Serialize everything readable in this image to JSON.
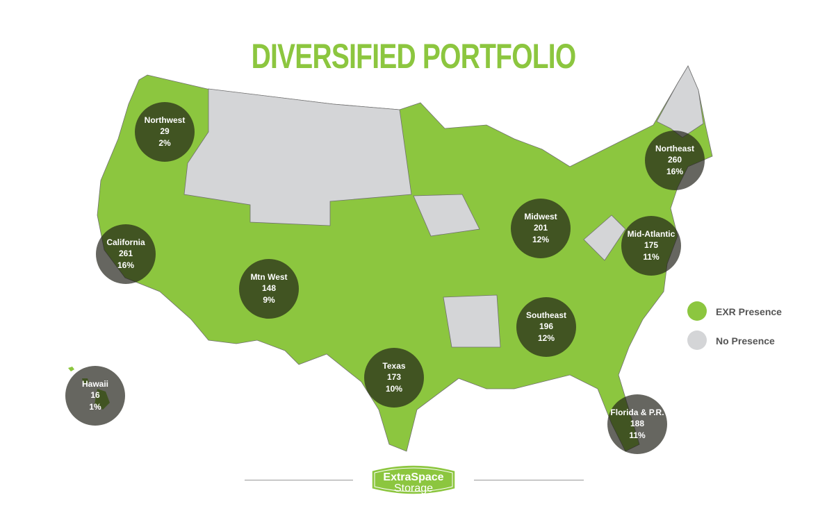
{
  "title": "DIVERSIFIED PORTFOLIO",
  "colors": {
    "presence": "#8cc63f",
    "no_presence": "#d4d5d7",
    "region_overlay": "#1e1e14",
    "title": "#8cc63f"
  },
  "legend": [
    {
      "label": "EXR Presence",
      "color": "#8cc63f"
    },
    {
      "label": "No Presence",
      "color": "#d4d5d7"
    }
  ],
  "regions": [
    {
      "name": "Northwest",
      "count": "29",
      "percent": "2%"
    },
    {
      "name": "California",
      "count": "261",
      "percent": "16%"
    },
    {
      "name": "Mtn West",
      "count": "148",
      "percent": "9%"
    },
    {
      "name": "Texas",
      "count": "173",
      "percent": "10%"
    },
    {
      "name": "Southeast",
      "count": "196",
      "percent": "12%"
    },
    {
      "name": "Midwest",
      "count": "201",
      "percent": "12%"
    },
    {
      "name": "Mid-Atlantic",
      "count": "175",
      "percent": "11%"
    },
    {
      "name": "Northeast",
      "count": "260",
      "percent": "16%"
    },
    {
      "name": "Florida & P.R.",
      "count": "188",
      "percent": "11%"
    },
    {
      "name": "Hawaii",
      "count": "16",
      "percent": "1%"
    }
  ],
  "logo": {
    "line1": "ExtraSpace",
    "line2": "Storage"
  }
}
